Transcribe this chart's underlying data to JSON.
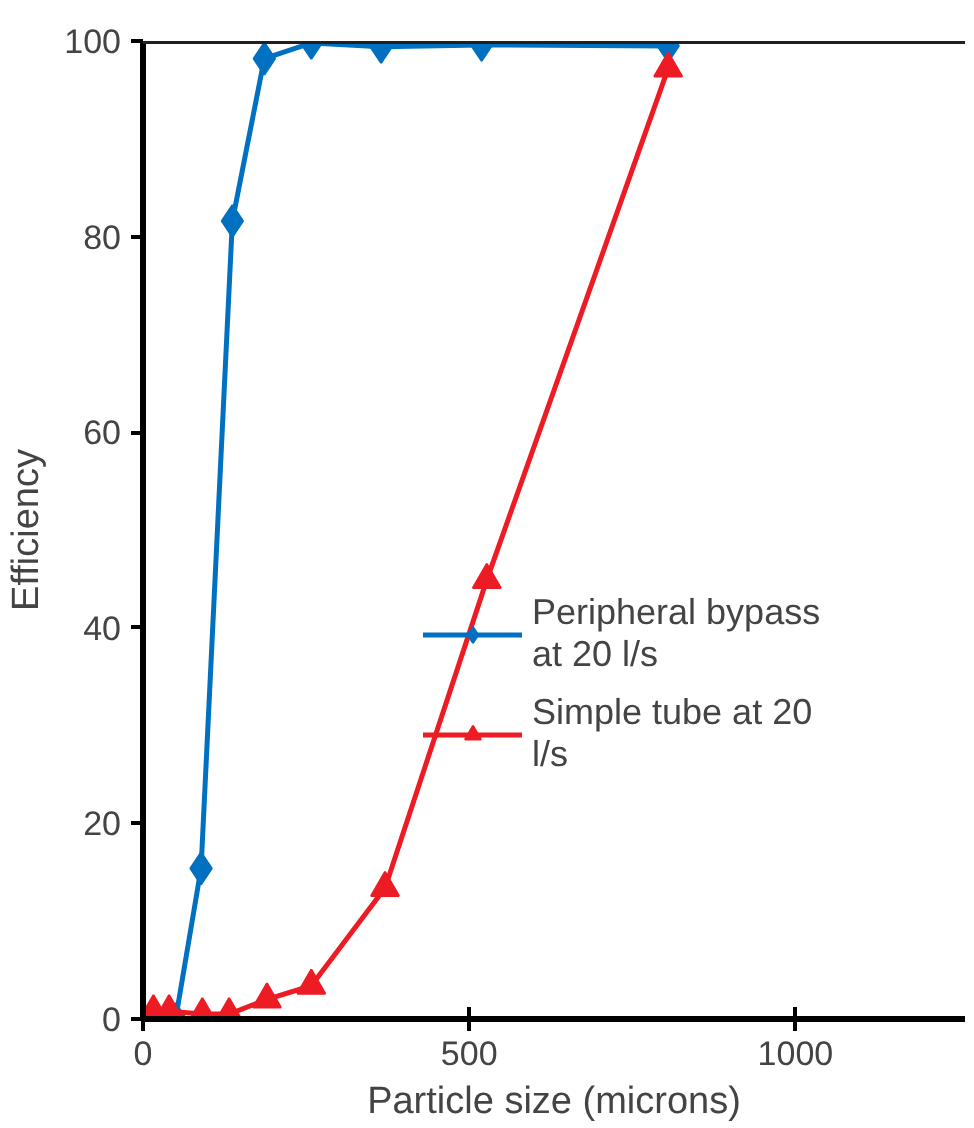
{
  "chart_data": {
    "type": "line",
    "xlabel": "Particle size (microns)",
    "ylabel": "Efficiency",
    "xlim": [
      0,
      1260
    ],
    "ylim": [
      0,
      100
    ],
    "xticks": [
      0,
      500,
      1000
    ],
    "yticks": [
      0,
      20,
      40,
      60,
      80,
      100
    ],
    "grid": false,
    "legend": "right",
    "line_style": "solid",
    "series": [
      {
        "name": "Peripheral bypass at 20 l/s",
        "color": "#0070c0",
        "marker": "diamond",
        "x": [
          50,
          89,
          137,
          186,
          258,
          365,
          519,
          805
        ],
        "values": [
          0,
          15.4,
          81.6,
          98.2,
          99.8,
          99.4,
          99.6,
          99.5
        ]
      },
      {
        "name": "Simple tube at 20 l/s",
        "color": "#ed1c24",
        "marker": "triangle",
        "x": [
          16,
          40,
          91,
          132,
          190,
          258,
          371,
          527,
          805
        ],
        "values": [
          0.8,
          0.8,
          0.5,
          0.5,
          2,
          3.4,
          13.4,
          44.9,
          97.2
        ]
      }
    ]
  }
}
